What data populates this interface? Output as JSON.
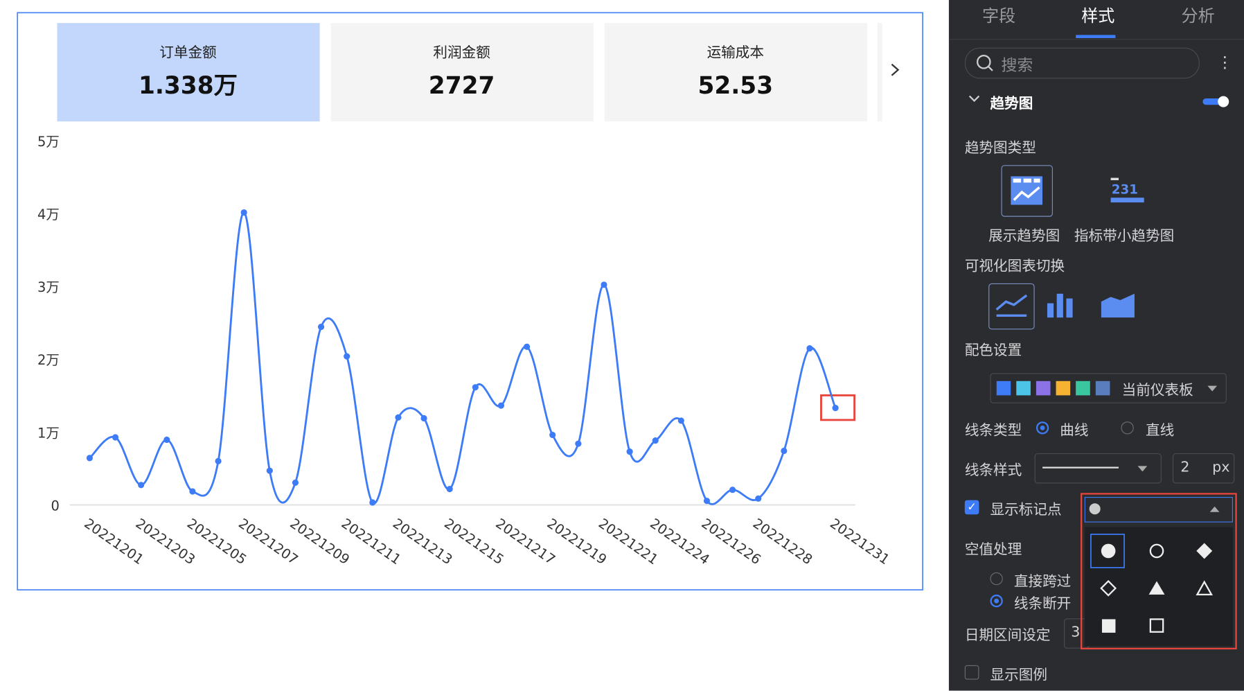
{
  "kpis": [
    {
      "label": "订单金额",
      "value": "1.338万"
    },
    {
      "label": "利润金额",
      "value": 2727
    },
    {
      "label": "运输成本",
      "value": 52.53
    }
  ],
  "chart_data": {
    "type": "line",
    "categories": [
      "20221201",
      null,
      "20221203",
      null,
      "20221205",
      null,
      "20221207",
      null,
      "20221209",
      null,
      "20221211",
      null,
      "20221213",
      null,
      "20221215",
      null,
      "20221217",
      null,
      "20221219",
      null,
      "20221221",
      null,
      "20221224",
      null,
      "20221226",
      null,
      "20221228",
      null,
      null,
      "20221231"
    ],
    "series": [
      {
        "name": "订单金额",
        "color": "#3d7bf7",
        "values": [
          6430,
          9270,
          2730,
          8940,
          1850,
          6000,
          40130,
          4690,
          3050,
          24430,
          20390,
          330,
          12000,
          11890,
          2180,
          16140,
          13630,
          21700,
          9600,
          8400,
          30210,
          7310,
          8830,
          11560,
          550,
          2070,
          870,
          7420,
          21480,
          13300
        ]
      }
    ],
    "ylim": [
      0,
      50000
    ],
    "yticks": [
      0,
      {
        "value": 10000,
        "label": "1万"
      },
      {
        "value": 20000,
        "label": "2万"
      },
      {
        "value": 30000,
        "label": "3万"
      },
      {
        "value": 40000,
        "label": "4万"
      },
      {
        "value": 50000,
        "label": "5万"
      }
    ],
    "grid": false,
    "smooth": true
  },
  "panel": {
    "tabs": [
      "字段",
      "样式",
      "分析"
    ],
    "search": "搜索",
    "section": "趋势图",
    "trend_type_label": "趋势图类型",
    "trend_types": [
      "展示趋势图",
      "指标带小趋势图"
    ],
    "switch_label": "可视化图表切换",
    "color_label": "配色设置",
    "color_value": "当前仪表板",
    "line_type_label": "线条类型",
    "line_types": [
      "曲线",
      "直线"
    ],
    "line_style_label": "线条样式",
    "line_width": "2",
    "line_width_unit": "px",
    "show_markers": "显示标记点",
    "null_label": "空值处理",
    "null_options": [
      "直接跨过",
      "线条断开"
    ],
    "date_range_label": "日期区间设定",
    "date_range_value": "3",
    "show_legend": "显示图例"
  }
}
